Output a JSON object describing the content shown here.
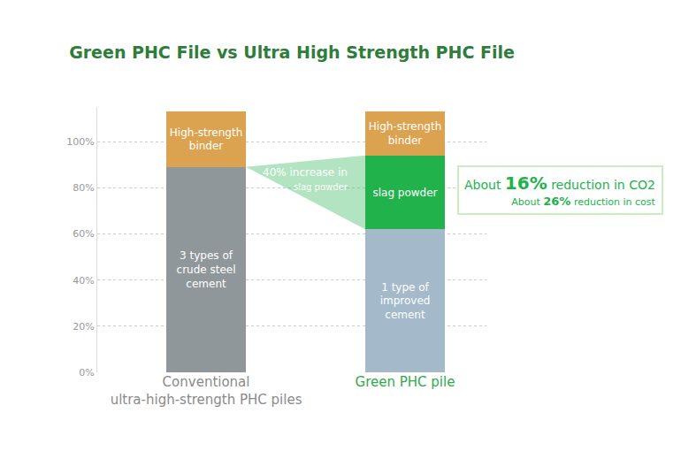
{
  "chart_data": {
    "type": "bar",
    "title": "Green PHC File vs Ultra High Strength PHC File",
    "categories": [
      "Conventional\nultra-high-strength PHC piles",
      "Green PHC pile"
    ],
    "stacked": true,
    "series": [
      {
        "name": "3 types of\ncrude steel\ncement",
        "color": "#8f979b",
        "values": [
          89,
          null
        ]
      },
      {
        "name": "1 type of\nimproved\ncement",
        "color": "#a4b9c9",
        "values": [
          null,
          62
        ]
      },
      {
        "name": "slag powder",
        "color": "#22b24c",
        "values": [
          null,
          32
        ]
      },
      {
        "name": "High-strength\nbinder",
        "color": "#dba24f",
        "values": [
          24,
          19
        ]
      }
    ],
    "ylim": [
      0,
      115
    ],
    "yticks": [
      {
        "value": 0,
        "label": "0%"
      },
      {
        "value": 20,
        "label": "20%"
      },
      {
        "value": 40,
        "label": "40%"
      },
      {
        "value": 60,
        "label": "60%"
      },
      {
        "value": 80,
        "label": "80%"
      },
      {
        "value": 100,
        "label": "100%"
      }
    ],
    "grid": true,
    "annotations": [
      "40% increase in\nslag powder",
      "About 16% reduction in CO2",
      "About 26% reduction in cost"
    ]
  }
}
